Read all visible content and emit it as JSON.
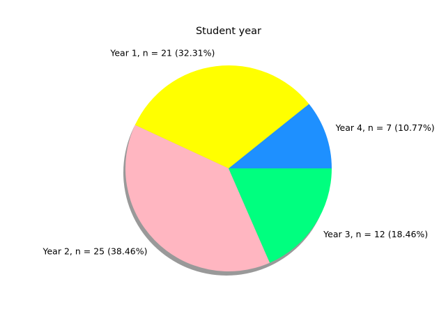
{
  "chart_data": {
    "type": "pie",
    "title": "Student year",
    "categories": [
      "Year 4",
      "Year 1",
      "Year 2",
      "Year 3"
    ],
    "values": [
      7,
      21,
      25,
      12
    ],
    "labels": [
      "Year 4, n = 7 (10.77%)",
      "Year 1, n = 21 (32.31%)",
      "Year 2, n = 25 (38.46%)",
      "Year 3, n = 12 (18.46%)"
    ],
    "colors": [
      "#1e90ff",
      "#ffff00",
      "#ffb6c1",
      "#00ff7f"
    ],
    "start_angle_deg": 0,
    "direction": "counterclockwise",
    "shadow": true
  }
}
